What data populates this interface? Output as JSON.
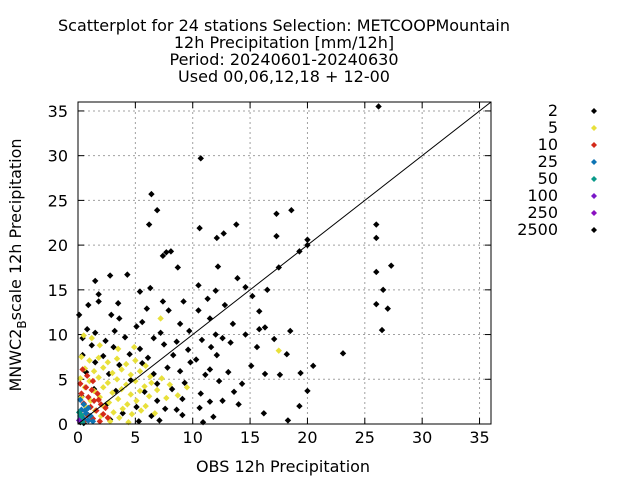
{
  "chart_data": {
    "type": "scatter",
    "title_lines": [
      "Scatterplot for   24 stations Selection: METCOOPMountain",
      "12h Precipitation [mm/12h]",
      "Period: 20240601-20240630",
      "Used 00,06,12,18 + 12-00"
    ],
    "xlabel": "OBS 12h Precipitation",
    "ylabel_main": "MNWC2",
    "ylabel_sub": "B",
    "ylabel_rest": "scale 12h Precipitation",
    "xlim": [
      0,
      36
    ],
    "ylim": [
      0,
      36
    ],
    "xticks": [
      0,
      5,
      10,
      15,
      20,
      25,
      30,
      35
    ],
    "yticks": [
      0,
      5,
      10,
      15,
      20,
      25,
      30,
      35
    ],
    "grid": true,
    "diagonal": [
      [
        0,
        0
      ],
      [
        36,
        36
      ]
    ],
    "legend_position": "right",
    "legend": [
      {
        "label": "2",
        "color": "#000000"
      },
      {
        "label": "5",
        "color": "#e8e03a"
      },
      {
        "label": "10",
        "color": "#d42a1a"
      },
      {
        "label": "25",
        "color": "#0e74b4"
      },
      {
        "label": "50",
        "color": "#0a9a8a"
      },
      {
        "label": "100",
        "color": "#7a18c8"
      },
      {
        "label": "250",
        "color": "#8a10c0"
      },
      {
        "label": "2500",
        "color": "#000000"
      }
    ],
    "series": [
      {
        "color": "#000000",
        "points": [
          [
            26.2,
            35.5
          ],
          [
            10.7,
            29.7
          ],
          [
            6.4,
            25.7
          ],
          [
            6.9,
            23.9
          ],
          [
            6.2,
            22.3
          ],
          [
            13.8,
            22.3
          ],
          [
            17.3,
            23.5
          ],
          [
            18.6,
            23.9
          ],
          [
            20,
            20.6
          ],
          [
            26,
            22.3
          ],
          [
            10.6,
            21.9
          ],
          [
            12.7,
            21.3
          ],
          [
            12.1,
            20.8
          ],
          [
            19.3,
            19.3
          ],
          [
            20,
            20
          ],
          [
            7.7,
            19.2
          ],
          [
            8.1,
            19.3
          ],
          [
            7.4,
            18.8
          ],
          [
            17.3,
            21
          ],
          [
            26,
            20.8
          ],
          [
            8.7,
            17.5
          ],
          [
            12.2,
            17.6
          ],
          [
            13.9,
            16.3
          ],
          [
            17.5,
            17.5
          ],
          [
            27.3,
            17.7
          ],
          [
            26,
            17
          ],
          [
            1.5,
            16
          ],
          [
            2.8,
            16.6
          ],
          [
            4.3,
            16.7
          ],
          [
            6.3,
            15.2
          ],
          [
            10.5,
            15.5
          ],
          [
            12,
            14.9
          ],
          [
            14.6,
            15.3
          ],
          [
            16.5,
            15
          ],
          [
            26.6,
            15
          ],
          [
            1.8,
            14.5
          ],
          [
            5.4,
            14.8
          ],
          [
            7.4,
            13.7
          ],
          [
            9.2,
            13.7
          ],
          [
            11.3,
            14
          ],
          [
            15.2,
            14.3
          ],
          [
            26,
            13.4
          ],
          [
            27,
            12.9
          ],
          [
            0.9,
            13.3
          ],
          [
            1.8,
            13.7
          ],
          [
            3.5,
            13.5
          ],
          [
            6,
            12.9
          ],
          [
            7.9,
            12.7
          ],
          [
            10.5,
            12.7
          ],
          [
            12.8,
            13.3
          ],
          [
            15.8,
            12.6
          ],
          [
            0.1,
            12.2
          ],
          [
            2.9,
            12.2
          ],
          [
            3.6,
            11.8
          ],
          [
            5.6,
            11.4
          ],
          [
            8.9,
            11.2
          ],
          [
            11.5,
            11.8
          ],
          [
            13.5,
            11.2
          ],
          [
            16.3,
            10.8
          ],
          [
            26.5,
            10.5
          ],
          [
            0.8,
            10.6
          ],
          [
            1.5,
            10.2
          ],
          [
            3.2,
            10.4
          ],
          [
            5.1,
            10.9
          ],
          [
            7.2,
            10.2
          ],
          [
            9.7,
            10.4
          ],
          [
            12,
            10
          ],
          [
            14.6,
            10
          ],
          [
            15.8,
            10.6
          ],
          [
            18.5,
            10.4
          ],
          [
            0.4,
            9.6
          ],
          [
            2.4,
            9.3
          ],
          [
            4.1,
            9.7
          ],
          [
            6.6,
            9.6
          ],
          [
            8.6,
            9.2
          ],
          [
            10.8,
            9.4
          ],
          [
            12.6,
            9.6
          ],
          [
            17.1,
            9.5
          ],
          [
            1.2,
            8.8
          ],
          [
            3.1,
            8.6
          ],
          [
            5.4,
            8.4
          ],
          [
            7.5,
            8.9
          ],
          [
            9.6,
            8.3
          ],
          [
            11.6,
            8.6
          ],
          [
            13.3,
            9.1
          ],
          [
            15.6,
            8.6
          ],
          [
            23.1,
            7.9
          ],
          [
            0.4,
            7.7
          ],
          [
            2.2,
            7.6
          ],
          [
            4.5,
            7.8
          ],
          [
            6.1,
            7.4
          ],
          [
            8.3,
            7.7
          ],
          [
            10.3,
            7.2
          ],
          [
            12.1,
            7.7
          ],
          [
            18.2,
            7.8
          ],
          [
            1.5,
            6.9
          ],
          [
            3.6,
            6.6
          ],
          [
            5.6,
            6.8
          ],
          [
            7.8,
            6.3
          ],
          [
            9.8,
            6.9
          ],
          [
            11.5,
            6.1
          ],
          [
            15.1,
            6.5
          ],
          [
            20.5,
            6.5
          ],
          [
            0.7,
            5.8
          ],
          [
            2.7,
            5.6
          ],
          [
            6.6,
            5.6
          ],
          [
            8.9,
            5.9
          ],
          [
            11.1,
            5.5
          ],
          [
            13.1,
            5.8
          ],
          [
            16.3,
            5.6
          ],
          [
            17.6,
            5.5
          ],
          [
            19.4,
            5.7
          ],
          [
            4.6,
            4.9
          ],
          [
            6.9,
            4.5
          ],
          [
            9.3,
            4.6
          ],
          [
            12.3,
            4.8
          ],
          [
            14.3,
            4.5
          ],
          [
            1.4,
            3.9
          ],
          [
            3.3,
            3.7
          ],
          [
            5.8,
            3.6
          ],
          [
            8.2,
            3.9
          ],
          [
            10.7,
            3.4
          ],
          [
            13.6,
            3.6
          ],
          [
            20,
            3.7
          ],
          [
            0.3,
            3.1
          ],
          [
            6.9,
            2.6
          ],
          [
            9.1,
            2.8
          ],
          [
            11.5,
            2.5
          ],
          [
            12.6,
            2.6
          ],
          [
            2.5,
            2.2
          ],
          [
            5.1,
            1.9
          ],
          [
            7.6,
            1.7
          ],
          [
            8.6,
            1.6
          ],
          [
            10.6,
            1.8
          ],
          [
            14,
            2.2
          ],
          [
            19.3,
            2
          ],
          [
            0.8,
            1.1
          ],
          [
            3.9,
            1.2
          ],
          [
            6.4,
            0.9
          ],
          [
            9.1,
            1
          ],
          [
            11.8,
            0.8
          ],
          [
            16.2,
            1.2
          ],
          [
            2.8,
            0.5
          ],
          [
            5.3,
            0.3
          ],
          [
            7.1,
            0.4
          ],
          [
            10.9,
            0.2
          ],
          [
            18.3,
            0.4
          ],
          [
            0.2,
            0.2
          ],
          [
            0.9,
            0.4
          ],
          [
            0.5,
            0.1
          ]
        ]
      },
      {
        "color": "#e8e03a",
        "points": [
          [
            0.5,
            9.9
          ],
          [
            1.2,
            9.6
          ],
          [
            1.9,
            8.8
          ],
          [
            3.5,
            8.4
          ],
          [
            4.9,
            8.6
          ],
          [
            7.2,
            11.8
          ],
          [
            17.5,
            8.2
          ],
          [
            0.3,
            7.5
          ],
          [
            1,
            7.1
          ],
          [
            1.8,
            7.4
          ],
          [
            2.6,
            6.9
          ],
          [
            3.4,
            7.3
          ],
          [
            4.2,
            6.7
          ],
          [
            5,
            7.1
          ],
          [
            5.9,
            6.5
          ],
          [
            0.6,
            6.2
          ],
          [
            1.4,
            5.9
          ],
          [
            2.2,
            6.3
          ],
          [
            3,
            5.7
          ],
          [
            3.8,
            6.1
          ],
          [
            4.6,
            5.5
          ],
          [
            5.4,
            5.9
          ],
          [
            6.3,
            5.3
          ],
          [
            0.2,
            5.1
          ],
          [
            1,
            4.8
          ],
          [
            1.8,
            5.2
          ],
          [
            2.6,
            4.6
          ],
          [
            3.4,
            5
          ],
          [
            4.2,
            4.4
          ],
          [
            5,
            4.8
          ],
          [
            5.8,
            4.2
          ],
          [
            0.6,
            4.1
          ],
          [
            1.4,
            3.7
          ],
          [
            2.2,
            4.1
          ],
          [
            3,
            3.5
          ],
          [
            3.8,
            3.9
          ],
          [
            4.6,
            3.3
          ],
          [
            5.4,
            3.7
          ],
          [
            6.2,
            3.1
          ],
          [
            0.3,
            3
          ],
          [
            1.1,
            2.6
          ],
          [
            1.9,
            3
          ],
          [
            2.7,
            2.4
          ],
          [
            3.5,
            2.8
          ],
          [
            4.3,
            2.2
          ],
          [
            5.1,
            2.6
          ],
          [
            5.9,
            2
          ],
          [
            0.7,
            1.9
          ],
          [
            1.5,
            1.5
          ],
          [
            2.3,
            1.9
          ],
          [
            3.1,
            1.3
          ],
          [
            3.9,
            1.7
          ],
          [
            4.7,
            1.1
          ],
          [
            5.5,
            1.5
          ],
          [
            0.4,
            0.8
          ],
          [
            1.2,
            0.5
          ],
          [
            2,
            0.9
          ],
          [
            2.8,
            0.3
          ],
          [
            3.6,
            0.7
          ],
          [
            4.4,
            0.2
          ],
          [
            6.4,
            4.6
          ],
          [
            6.9,
            3.8
          ],
          [
            7.3,
            5.1
          ],
          [
            8,
            4.4
          ],
          [
            7.7,
            2.9
          ],
          [
            6.7,
            1.2
          ],
          [
            8.7,
            3.2
          ],
          [
            9.5,
            4.1
          ]
        ]
      },
      {
        "color": "#d42a1a",
        "points": [
          [
            0.4,
            6.1
          ],
          [
            0.8,
            5.4
          ],
          [
            1.3,
            4.8
          ],
          [
            0.2,
            4.5
          ],
          [
            0.7,
            4.1
          ],
          [
            1.2,
            3.8
          ],
          [
            1.7,
            3.4
          ],
          [
            0.3,
            3.4
          ],
          [
            0.9,
            3
          ],
          [
            1.4,
            2.6
          ],
          [
            2,
            2.2
          ],
          [
            0.5,
            2.3
          ],
          [
            1.1,
            1.9
          ],
          [
            1.6,
            1.5
          ],
          [
            2.2,
            1.1
          ],
          [
            2.6,
            0.7
          ],
          [
            0.2,
            1.4
          ],
          [
            0.8,
            1
          ],
          [
            1.3,
            0.6
          ],
          [
            1.9,
            0.3
          ],
          [
            0.6,
            0.4
          ],
          [
            2.4,
            1.8
          ],
          [
            1.8,
            2.7
          ]
        ]
      },
      {
        "color": "#0e74b4",
        "points": [
          [
            0.2,
            2.7
          ],
          [
            0.5,
            2.2
          ],
          [
            0.9,
            1.8
          ],
          [
            0.3,
            1.6
          ],
          [
            0.7,
            1.2
          ],
          [
            1.1,
            0.9
          ],
          [
            0.2,
            0.9
          ],
          [
            0.5,
            0.6
          ],
          [
            0.9,
            0.4
          ],
          [
            1.3,
            0.3
          ],
          [
            0.3,
            0.3
          ],
          [
            0.6,
            1.5
          ]
        ]
      },
      {
        "color": "#0a9a8a",
        "points": [
          [
            0.1,
            1.3
          ],
          [
            0.3,
            1
          ],
          [
            0.2,
            0.6
          ],
          [
            0.4,
            0.2
          ]
        ]
      },
      {
        "color": "#7a18c8",
        "points": [
          [
            0.1,
            0.4
          ]
        ]
      }
    ]
  }
}
